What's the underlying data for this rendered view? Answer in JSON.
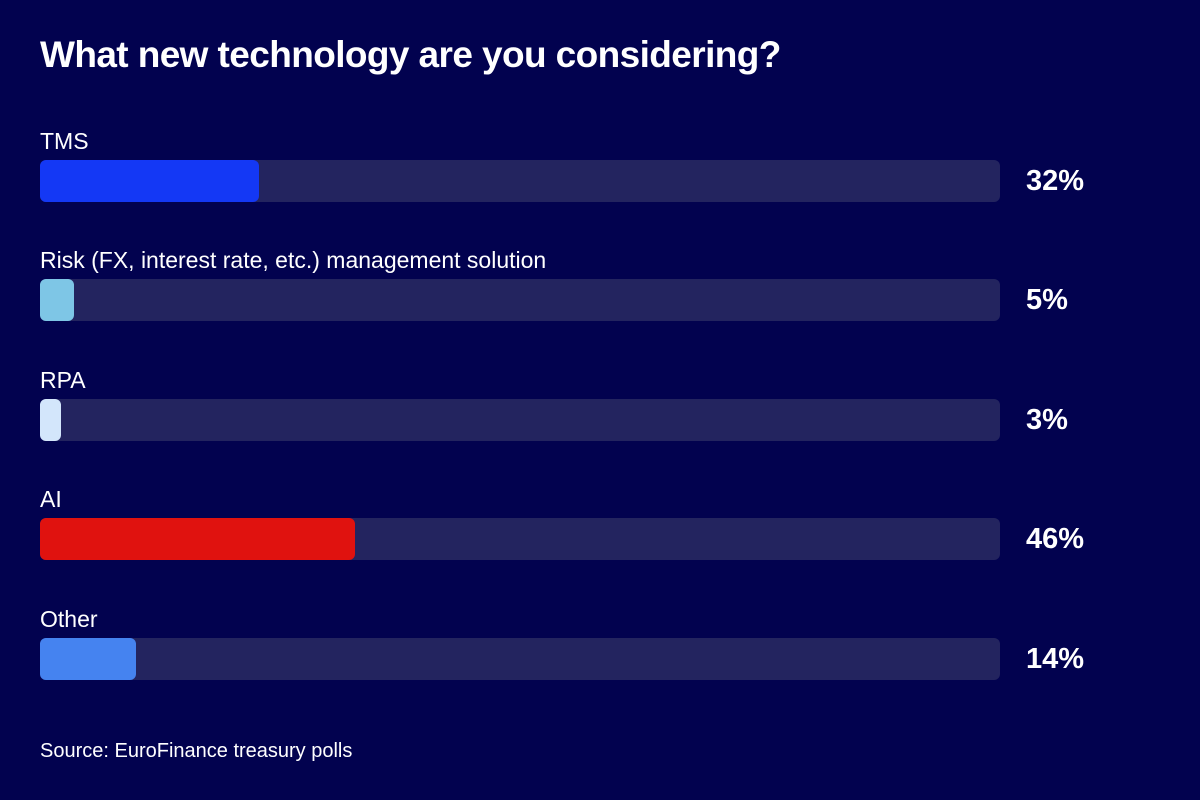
{
  "chart_data": {
    "type": "bar",
    "orientation": "horizontal",
    "title": "What new technology are you considering?",
    "categories": [
      "TMS",
      "Risk (FX, interest rate, etc.) management solution",
      "RPA",
      "AI",
      "Other"
    ],
    "values": [
      32,
      5,
      3,
      46,
      14
    ],
    "value_labels": [
      "32%",
      "5%",
      "3%",
      "46%",
      "14%"
    ],
    "colors": [
      "#1438f5",
      "#7ec6e6",
      "#d3e6fb",
      "#e0120f",
      "#4583f0"
    ],
    "track_color": "#23245f",
    "unit": "%",
    "xlim": [
      0,
      140
    ],
    "source": "Source: EuroFinance treasury polls"
  }
}
